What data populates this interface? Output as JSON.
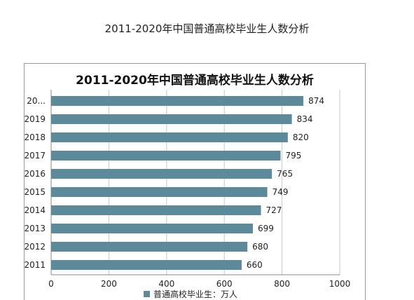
{
  "page": {
    "title": "2011-2020年中国普通高校毕业生人数分析"
  },
  "chart_data": {
    "type": "bar",
    "orientation": "horizontal",
    "title": "2011-2020年中国普通高校毕业生人数分析",
    "categories": [
      "2011",
      "2012",
      "2013",
      "2014",
      "2015",
      "2016",
      "2017",
      "2018",
      "2019",
      "20..."
    ],
    "series": [
      {
        "name": "普通高校毕业生：万人",
        "values": [
          660,
          680,
          699,
          727,
          749,
          765,
          795,
          820,
          834,
          874
        ]
      }
    ],
    "xlim": [
      0,
      1000
    ],
    "xticks": [
      0,
      200,
      400,
      600,
      800,
      1000
    ],
    "grid": "vertical",
    "legend": "bottom",
    "bar_color": "#5c8a9a"
  }
}
